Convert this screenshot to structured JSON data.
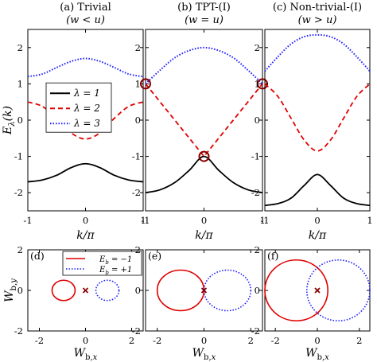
{
  "chart_data": [
    {
      "panel": "a",
      "type": "line",
      "title_line1": "(a) Trivial",
      "title_line2": "(w < u)",
      "ylabel": "E_λ(k)",
      "xlabel": "",
      "xlim": [
        -1,
        1
      ],
      "ylim": [
        -2.5,
        2.5
      ],
      "x_ticks": [
        "-1",
        "0",
        "1"
      ],
      "y_ticks": [
        "-2",
        "-1",
        "0",
        "1",
        "2"
      ],
      "legend": {
        "placement": "middle-left",
        "entries": [
          "λ = 1",
          "λ = 2",
          "λ = 3"
        ]
      },
      "series": [
        {
          "name": "λ = 1",
          "color": "#000000",
          "dash": "solid",
          "x": [
            -1,
            -0.75,
            -0.5,
            -0.25,
            0,
            0.25,
            0.5,
            0.75,
            1
          ],
          "y": [
            -1.7,
            -1.65,
            -1.52,
            -1.31,
            -1.2,
            -1.31,
            -1.52,
            -1.65,
            -1.7
          ]
        },
        {
          "name": "λ = 2",
          "color": "#e00000",
          "dash": "dashed",
          "x": [
            -1,
            -0.75,
            -0.5,
            -0.25,
            0,
            0.25,
            0.5,
            0.75,
            1
          ],
          "y": [
            0.5,
            0.38,
            0.05,
            -0.35,
            -0.52,
            -0.35,
            0.05,
            0.38,
            0.5
          ]
        },
        {
          "name": "λ = 3",
          "color": "#1a1aff",
          "dash": "dotted",
          "x": [
            -1,
            -0.75,
            -0.5,
            -0.25,
            0,
            0.25,
            0.5,
            0.75,
            1
          ],
          "y": [
            1.2,
            1.27,
            1.45,
            1.62,
            1.7,
            1.62,
            1.45,
            1.27,
            1.2
          ]
        }
      ]
    },
    {
      "panel": "b",
      "type": "line",
      "title_line1": "(b) TPT-(I)",
      "title_line2": "(w = u)",
      "xlim": [
        -1,
        1
      ],
      "ylim": [
        -2.5,
        2.5
      ],
      "x_ticks": [
        "-1",
        "0",
        "1"
      ],
      "y_ticks": [
        "-2",
        "-1",
        "0",
        "1",
        "2"
      ],
      "markers": [
        {
          "x": -1,
          "y": 1
        },
        {
          "x": 1,
          "y": 1
        },
        {
          "x": 0,
          "y": -1
        }
      ],
      "marker_color": "#8b0000",
      "series": [
        {
          "color": "#000000",
          "dash": "solid",
          "x": [
            -1,
            -0.75,
            -0.5,
            -0.25,
            0,
            0.25,
            0.5,
            0.75,
            1
          ],
          "y": [
            -2.0,
            -1.92,
            -1.72,
            -1.38,
            -1.0,
            -1.38,
            -1.72,
            -1.92,
            -2.0
          ]
        },
        {
          "color": "#e00000",
          "dash": "dashed",
          "x": [
            -1,
            -0.5,
            0,
            0.5,
            1
          ],
          "y": [
            1.0,
            0.0,
            -1.0,
            0.0,
            1.0
          ]
        },
        {
          "color": "#1a1aff",
          "dash": "dotted",
          "x": [
            -1,
            -0.75,
            -0.5,
            -0.25,
            0,
            0.25,
            0.5,
            0.75,
            1
          ],
          "y": [
            1.0,
            1.38,
            1.72,
            1.92,
            2.0,
            1.92,
            1.72,
            1.38,
            1.0
          ]
        }
      ]
    },
    {
      "panel": "c",
      "type": "line",
      "title_line1": "(c) Non-trivial-(I)",
      "title_line2": "(w > u)",
      "xlim": [
        -1,
        1
      ],
      "ylim": [
        -2.5,
        2.5
      ],
      "x_ticks": [
        "-1",
        "0",
        "1"
      ],
      "y_ticks": [
        "-2",
        "-1",
        "0",
        "1",
        "2"
      ],
      "series": [
        {
          "color": "#000000",
          "dash": "solid",
          "x": [
            -1,
            -0.75,
            -0.5,
            -0.25,
            0,
            0.25,
            0.5,
            0.75,
            1
          ],
          "y": [
            -2.35,
            -2.3,
            -2.15,
            -1.8,
            -1.5,
            -1.8,
            -2.15,
            -2.3,
            -2.35
          ]
        },
        {
          "color": "#e00000",
          "dash": "dashed",
          "x": [
            -1,
            -0.75,
            -0.5,
            -0.25,
            0,
            0.25,
            0.5,
            0.75,
            1
          ],
          "y": [
            1.0,
            0.65,
            0.05,
            -0.55,
            -0.85,
            -0.55,
            0.05,
            0.65,
            1.0
          ]
        },
        {
          "color": "#1a1aff",
          "dash": "dotted",
          "x": [
            -1,
            -0.75,
            -0.5,
            -0.25,
            0,
            0.25,
            0.5,
            0.75,
            1
          ],
          "y": [
            1.35,
            1.75,
            2.1,
            2.3,
            2.35,
            2.3,
            2.1,
            1.75,
            1.35
          ]
        }
      ]
    },
    {
      "panel": "d",
      "type": "scatter",
      "title": "(d)",
      "ylabel": "W_b,y",
      "xlim": [
        -2.5,
        2.5
      ],
      "ylim": [
        -2,
        2
      ],
      "x_ticks": [
        "-2",
        "0",
        "2"
      ],
      "y_ticks": [
        "-2",
        "0",
        "2"
      ],
      "legend": {
        "placement": "top-right",
        "entries": [
          "E_b = −1",
          "E_b = +1"
        ]
      },
      "cross": {
        "x": 0,
        "y": 0,
        "color": "#8b0000"
      },
      "circles": [
        {
          "name": "E_b = −1",
          "color": "#e00000",
          "dash": "solid",
          "cx": -0.95,
          "cy": 0,
          "r": 0.5
        },
        {
          "name": "E_b = +1",
          "color": "#1a1aff",
          "dash": "dotted",
          "cx": 0.95,
          "cy": 0,
          "r": 0.5
        }
      ]
    },
    {
      "panel": "e",
      "type": "scatter",
      "title": "(e)",
      "xlim": [
        -2.5,
        2.5
      ],
      "ylim": [
        -2,
        2
      ],
      "x_ticks": [
        "-2",
        "0",
        "2"
      ],
      "y_ticks": [
        "-2",
        "0",
        "2"
      ],
      "cross": {
        "x": 0,
        "y": 0,
        "color": "#8b0000"
      },
      "circles": [
        {
          "color": "#e00000",
          "dash": "solid",
          "cx": -1,
          "cy": 0,
          "r": 1
        },
        {
          "color": "#1a1aff",
          "dash": "dotted",
          "cx": 1,
          "cy": 0,
          "r": 1
        }
      ]
    },
    {
      "panel": "f",
      "type": "scatter",
      "title": "(f)",
      "xlim": [
        -2.5,
        2.5
      ],
      "ylim": [
        -2,
        2
      ],
      "x_ticks": [
        "-2",
        "0",
        "2"
      ],
      "y_ticks": [
        "-2",
        "0",
        "2"
      ],
      "cross": {
        "x": 0,
        "y": 0,
        "color": "#8b0000"
      },
      "circles": [
        {
          "color": "#e00000",
          "dash": "solid",
          "cx": -1,
          "cy": 0,
          "r": 1.5
        },
        {
          "color": "#1a1aff",
          "dash": "dotted",
          "cx": 1,
          "cy": 0,
          "r": 1.5
        }
      ]
    }
  ],
  "shared_labels": {
    "top_xlabel": "k/π",
    "bottom_xlabel": "W_b,x"
  }
}
